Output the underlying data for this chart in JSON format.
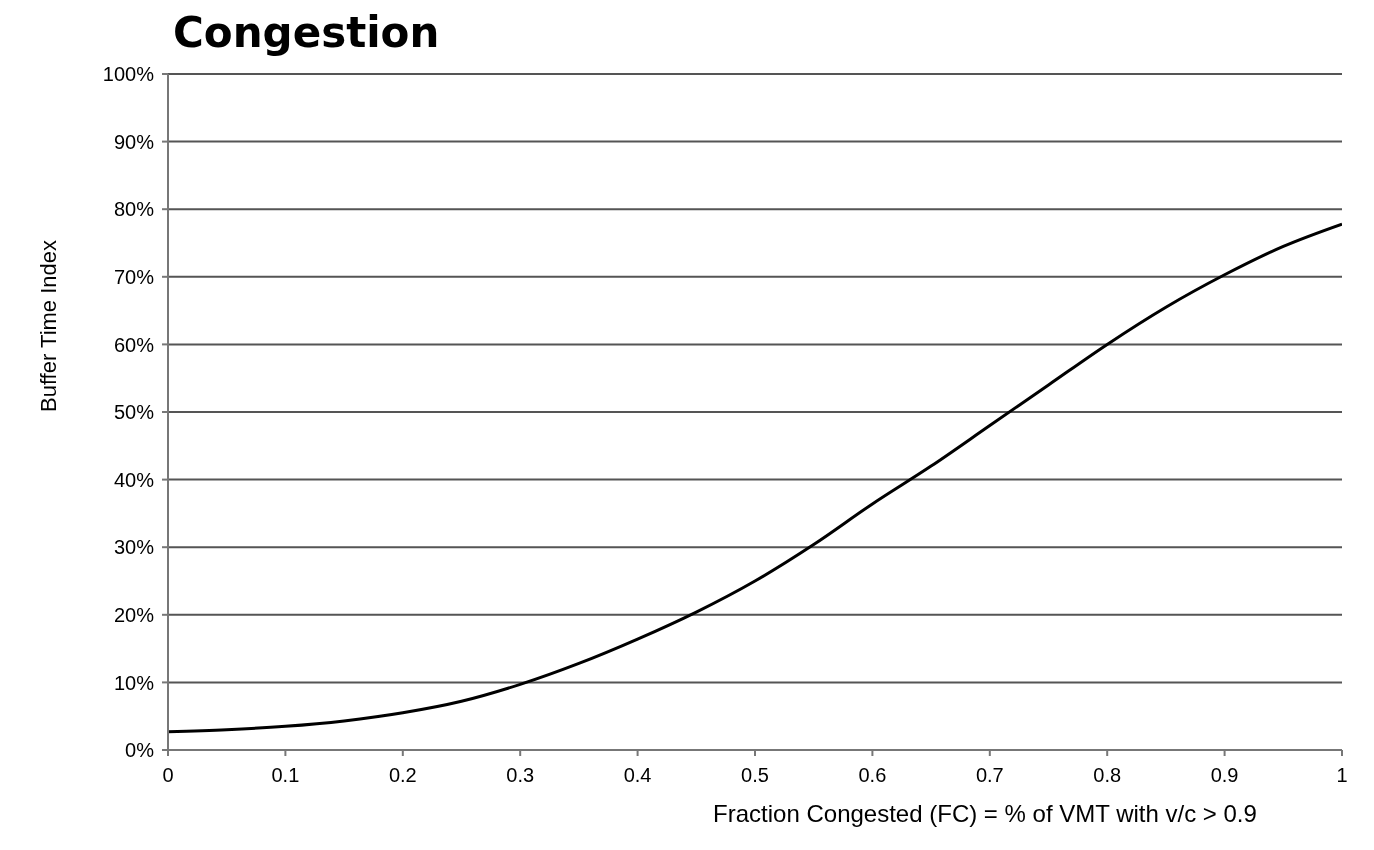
{
  "chart_data": {
    "type": "line",
    "title": "Congestion",
    "xlabel": "Fraction Congested (FC) = % of VMT with v/c > 0.9",
    "ylabel": "Buffer Time Index",
    "x": [
      0,
      0.05,
      0.1,
      0.15,
      0.2,
      0.25,
      0.3,
      0.35,
      0.4,
      0.45,
      0.5,
      0.55,
      0.6,
      0.65,
      0.7,
      0.75,
      0.8,
      0.85,
      0.9,
      0.95,
      1
    ],
    "series": [
      {
        "color": "#000000",
        "values": [
          2.7,
          3,
          3.5,
          4.3,
          5.5,
          7.2,
          9.7,
          12.8,
          16.4,
          20.4,
          25,
          30.4,
          36.4,
          42,
          48,
          54,
          60,
          65.5,
          70.3,
          74.5,
          77.8
        ]
      }
    ],
    "xlim": [
      0,
      1
    ],
    "xticks": [
      0,
      0.1,
      0.2,
      0.3,
      0.4,
      0.5,
      0.6,
      0.7,
      0.8,
      0.9,
      1
    ],
    "ylim": [
      0,
      100
    ],
    "yticks": [
      {
        "value": 0,
        "label": "0%"
      },
      {
        "value": 10,
        "label": "10%"
      },
      {
        "value": 20,
        "label": "20%"
      },
      {
        "value": 30,
        "label": "30%"
      },
      {
        "value": 40,
        "label": "40%"
      },
      {
        "value": 50,
        "label": "50%"
      },
      {
        "value": 60,
        "label": "60%"
      },
      {
        "value": 70,
        "label": "70%"
      },
      {
        "value": 80,
        "label": "80%"
      },
      {
        "value": 90,
        "label": "90%"
      },
      {
        "value": 100,
        "label": "100%"
      }
    ],
    "grid": "y",
    "legend": false,
    "marker": "none",
    "line_style": "solid"
  }
}
